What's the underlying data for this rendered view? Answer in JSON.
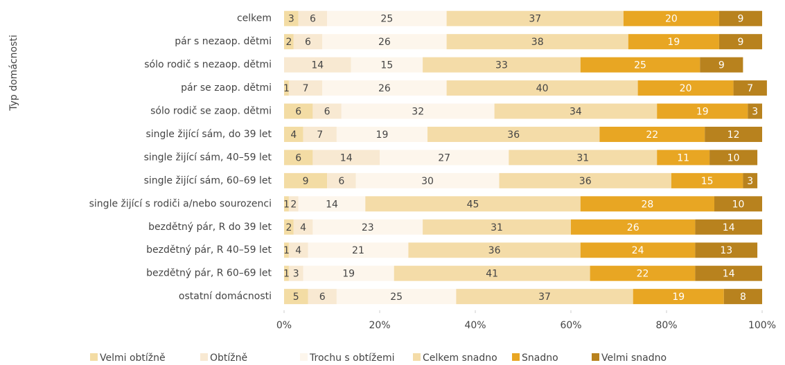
{
  "chart_data": {
    "type": "stacked_bar_horizontal",
    "y_label": "Typ domácnosti",
    "categories": [
      "celkem",
      "pár s nezaop. dětmi",
      "sólo rodič s nezaop. dětmi",
      "pár se zaop. dětmi",
      "sólo rodič se zaop. dětmi",
      "single žijící sám, do 39 let",
      "single žijící sám, 40–59 let",
      "single žijící sám, 60–69 let",
      "single žijící s rodiči a/nebo sourozenci",
      "bezdětný pár, R do 39 let",
      "bezdětný pár, R 40–59 let",
      "bezdětný pár, R 60–69 let",
      "ostatní domácnosti"
    ],
    "series": [
      {
        "name": "Velmi obtížně",
        "color": "#f3dca4",
        "values": [
          3,
          2,
          0,
          1,
          6,
          4,
          6,
          9,
          1,
          2,
          1,
          1,
          5
        ]
      },
      {
        "name": "Obtížně",
        "color": "#f8e9d2",
        "values": [
          6,
          6,
          14,
          7,
          6,
          7,
          14,
          6,
          2,
          4,
          4,
          3,
          6
        ]
      },
      {
        "name": "Trochu s obtížemi",
        "color": "#fdf6ec",
        "values": [
          25,
          26,
          15,
          26,
          32,
          19,
          27,
          30,
          14,
          23,
          21,
          19,
          25
        ]
      },
      {
        "name": "Celkem snadno",
        "color": "#f4dca8",
        "values": [
          37,
          38,
          33,
          40,
          34,
          36,
          31,
          36,
          45,
          31,
          36,
          41,
          37
        ]
      },
      {
        "name": "Snadno",
        "color": "#e8a623",
        "values": [
          20,
          19,
          25,
          20,
          19,
          22,
          11,
          15,
          28,
          26,
          24,
          22,
          19
        ]
      },
      {
        "name": "Velmi snadno",
        "color": "#b8821e",
        "values": [
          9,
          9,
          9,
          7,
          3,
          12,
          10,
          3,
          10,
          14,
          13,
          14,
          8
        ]
      }
    ],
    "xlim": [
      0,
      100
    ],
    "xticks": [
      {
        "value": 0,
        "label": "0%"
      },
      {
        "value": 20,
        "label": "20%"
      },
      {
        "value": 40,
        "label": "40%"
      },
      {
        "value": 60,
        "label": "60%"
      },
      {
        "value": 80,
        "label": "80%"
      },
      {
        "value": 100,
        "label": "100%"
      }
    ],
    "legend": "bottom"
  }
}
